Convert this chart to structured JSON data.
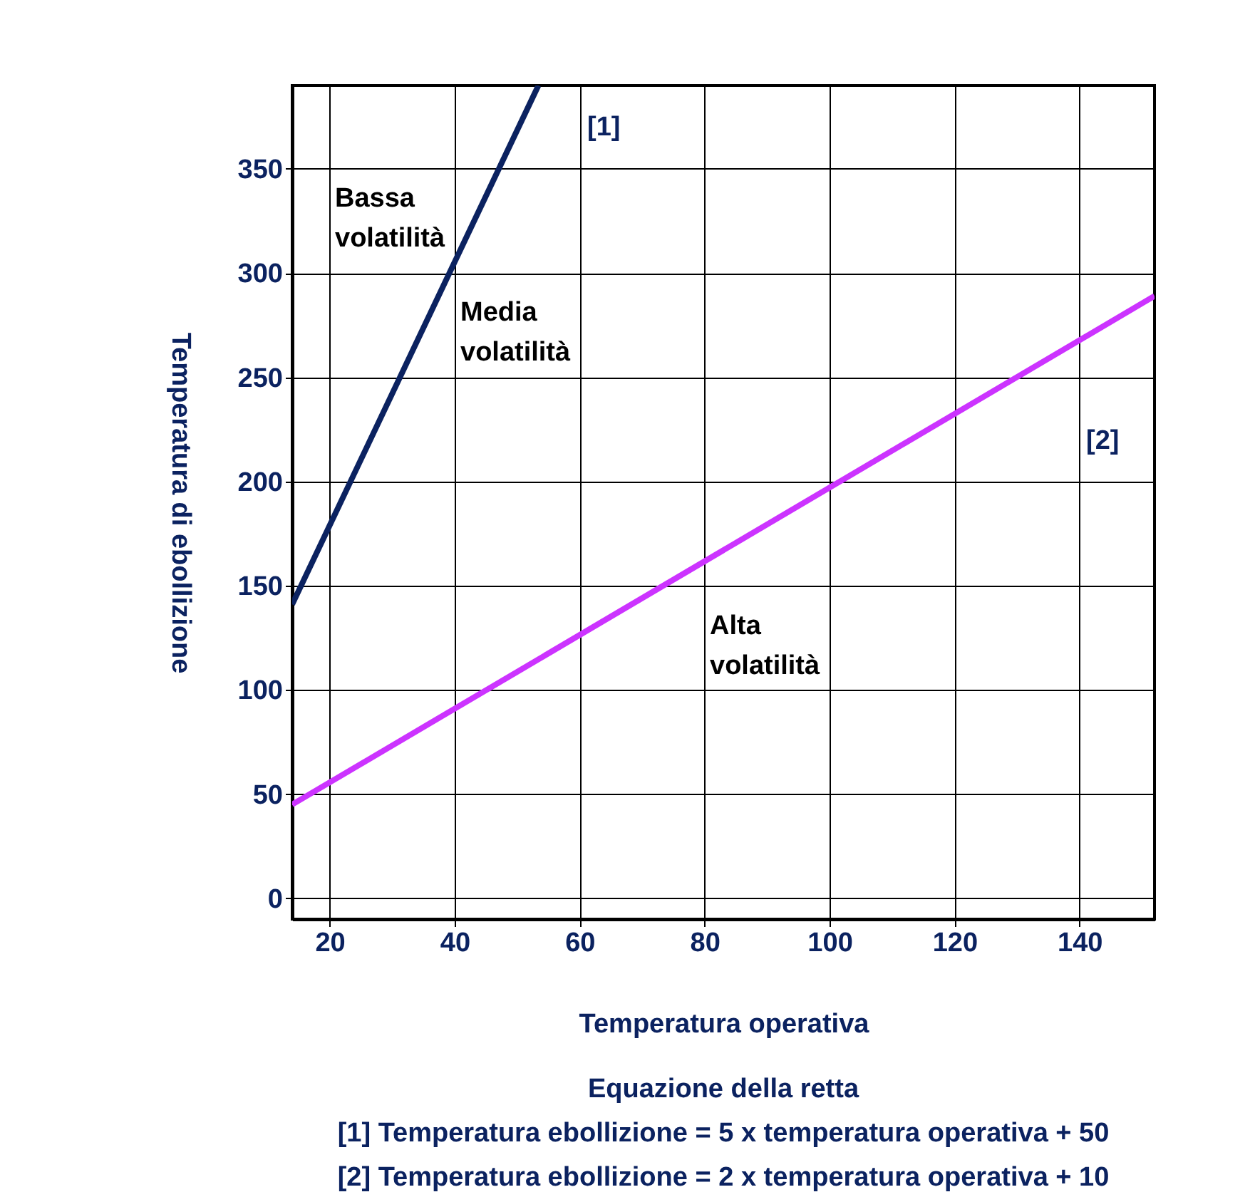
{
  "chart_data": {
    "type": "line",
    "xlabel": "Temperatura operativa",
    "ylabel": "Temperatura di ebollizione",
    "xlim": [
      14,
      152
    ],
    "ylim": [
      -10,
      390
    ],
    "xticks": [
      20,
      40,
      60,
      80,
      100,
      120,
      140
    ],
    "yticks": [
      0,
      50,
      100,
      150,
      200,
      250,
      300,
      350
    ],
    "grid": true,
    "marker": "none",
    "line_style": "solid",
    "series": [
      {
        "color": "#0b2260",
        "x": [
          14,
          53.4
        ],
        "values": [
          141,
          390
        ]
      },
      {
        "color": "#cc33ff",
        "x": [
          14,
          152
        ],
        "values": [
          45,
          289
        ]
      }
    ],
    "annotations": [
      "[1]",
      "[2]",
      "Bassa\nvolatilità",
      "Media\nvolatilità",
      "Alta\nvolatilità",
      "Equazione della retta",
      "[1] Temperatura ebollizione = 5 x temperatura operativa + 50",
      "[2] Temperatura ebollizione = 2 x temperatura operativa + 10"
    ]
  }
}
